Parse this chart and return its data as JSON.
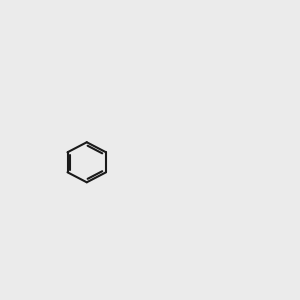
{
  "bg_color": "#ebebeb",
  "bond_color": "#1a1a1a",
  "o_color": "#ff0000",
  "n_color": "#0000cc",
  "lw": 1.5,
  "lw2": 3.0
}
